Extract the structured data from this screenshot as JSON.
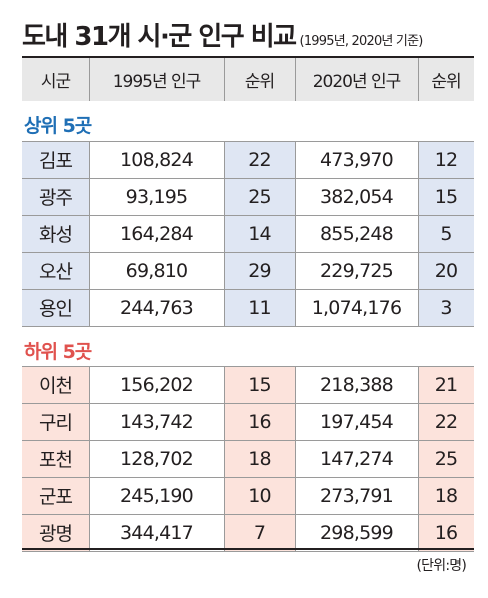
{
  "title": {
    "main": "도내 31개 시·군 인구 비교",
    "sub": "(1995년, 2020년 기준)"
  },
  "header": [
    "시군",
    "1995년 인구",
    "순위",
    "2020년 인구",
    "순위"
  ],
  "top": {
    "label": "상위 5곳",
    "rows": [
      [
        "김포",
        "108,824",
        "22",
        "473,970",
        "12"
      ],
      [
        "광주",
        "93,195",
        "25",
        "382,054",
        "15"
      ],
      [
        "화성",
        "164,284",
        "14",
        "855,248",
        "5"
      ],
      [
        "오산",
        "69,810",
        "29",
        "229,725",
        "20"
      ],
      [
        "용인",
        "244,763",
        "11",
        "1,074,176",
        "3"
      ]
    ]
  },
  "bottom": {
    "label": "하위 5곳",
    "rows": [
      [
        "이천",
        "156,202",
        "15",
        "218,388",
        "21"
      ],
      [
        "구리",
        "143,742",
        "16",
        "197,454",
        "22"
      ],
      [
        "포천",
        "128,702",
        "18",
        "147,274",
        "25"
      ],
      [
        "군포",
        "245,190",
        "10",
        "273,791",
        "18"
      ],
      [
        "광명",
        "344,417",
        "7",
        "298,599",
        "16"
      ]
    ]
  },
  "unit": "(단위:명)",
  "colors": {
    "top_accent": "#1f6fb5",
    "bottom_accent": "#e0524e",
    "top_fill": "#dfe6f3",
    "bottom_fill": "#fce3dc",
    "header_fill": "#e8e8e8"
  }
}
